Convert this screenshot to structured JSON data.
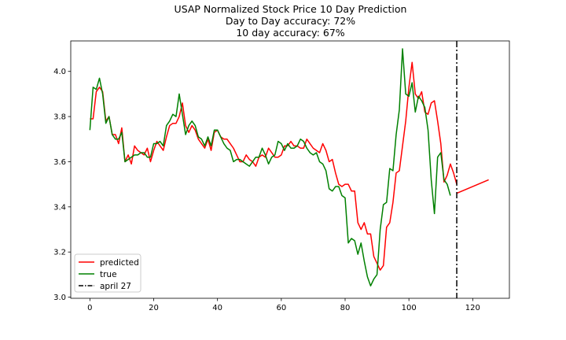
{
  "chart_data": {
    "type": "line",
    "title_lines": [
      "USAP Normalized Stock Price 10 Day Prediction",
      "Day to Day accuracy: 72%",
      "10 day accuracy: 67%"
    ],
    "xlabel": "",
    "ylabel": "",
    "xlim": [
      -6,
      131.5
    ],
    "ylim": [
      2.995,
      4.135
    ],
    "xticks": [
      0,
      20,
      40,
      60,
      80,
      100,
      120
    ],
    "yticks": [
      3.0,
      3.2,
      3.4,
      3.6,
      3.8,
      4.0
    ],
    "ytick_labels": [
      "3.0",
      "3.2",
      "3.4",
      "3.6",
      "3.8",
      "4.0"
    ],
    "grid": false,
    "legend_position": "lower-left",
    "marker": {
      "name": "april 27",
      "x": 115,
      "color": "#000000",
      "style": "dash-dot"
    },
    "series": [
      {
        "name": "predicted",
        "color": "#ff0000",
        "x_start": 0,
        "values": [
          3.79,
          3.79,
          3.91,
          3.93,
          3.91,
          3.78,
          3.8,
          3.72,
          3.72,
          3.68,
          3.75,
          3.6,
          3.63,
          3.59,
          3.67,
          3.65,
          3.64,
          3.63,
          3.66,
          3.6,
          3.65,
          3.69,
          3.67,
          3.65,
          3.71,
          3.76,
          3.77,
          3.77,
          3.8,
          3.86,
          3.76,
          3.73,
          3.76,
          3.74,
          3.7,
          3.68,
          3.66,
          3.7,
          3.65,
          3.73,
          3.74,
          3.71,
          3.7,
          3.7,
          3.68,
          3.66,
          3.63,
          3.6,
          3.6,
          3.63,
          3.61,
          3.6,
          3.58,
          3.62,
          3.63,
          3.62,
          3.66,
          3.64,
          3.62,
          3.62,
          3.63,
          3.67,
          3.67,
          3.69,
          3.67,
          3.67,
          3.66,
          3.66,
          3.7,
          3.68,
          3.66,
          3.65,
          3.64,
          3.68,
          3.65,
          3.6,
          3.61,
          3.55,
          3.5,
          3.49,
          3.5,
          3.5,
          3.47,
          3.47,
          3.33,
          3.3,
          3.33,
          3.28,
          3.28,
          3.18,
          3.15,
          3.12,
          3.14,
          3.31,
          3.33,
          3.42,
          3.55,
          3.56,
          3.67,
          3.78,
          3.93,
          4.04,
          3.9,
          3.88,
          3.91,
          3.82,
          3.81,
          3.86,
          3.87,
          3.78,
          3.68,
          3.51,
          3.54,
          3.59,
          3.55,
          3.5
        ],
        "projection": [
          [
            115,
            3.46
          ],
          [
            125,
            3.52
          ]
        ]
      },
      {
        "name": "true",
        "color": "#008000",
        "x_start": 0,
        "values": [
          3.74,
          3.93,
          3.92,
          3.97,
          3.9,
          3.77,
          3.8,
          3.72,
          3.7,
          3.7,
          3.73,
          3.6,
          3.61,
          3.62,
          3.63,
          3.63,
          3.64,
          3.64,
          3.62,
          3.62,
          3.68,
          3.68,
          3.69,
          3.67,
          3.76,
          3.78,
          3.81,
          3.8,
          3.9,
          3.81,
          3.72,
          3.76,
          3.78,
          3.76,
          3.71,
          3.7,
          3.67,
          3.71,
          3.67,
          3.74,
          3.74,
          3.71,
          3.68,
          3.66,
          3.65,
          3.6,
          3.61,
          3.61,
          3.6,
          3.59,
          3.58,
          3.6,
          3.62,
          3.62,
          3.66,
          3.63,
          3.59,
          3.62,
          3.63,
          3.69,
          3.68,
          3.65,
          3.68,
          3.66,
          3.66,
          3.67,
          3.7,
          3.69,
          3.66,
          3.64,
          3.63,
          3.64,
          3.6,
          3.59,
          3.56,
          3.48,
          3.47,
          3.49,
          3.49,
          3.45,
          3.44,
          3.24,
          3.26,
          3.25,
          3.19,
          3.24,
          3.16,
          3.09,
          3.05,
          3.08,
          3.1,
          3.3,
          3.41,
          3.42,
          3.57,
          3.56,
          3.72,
          3.83,
          4.1,
          3.9,
          3.89,
          3.95,
          3.82,
          3.89,
          3.87,
          3.84,
          3.74,
          3.52,
          3.37,
          3.62,
          3.64,
          3.52,
          3.5,
          3.45
        ]
      }
    ]
  }
}
